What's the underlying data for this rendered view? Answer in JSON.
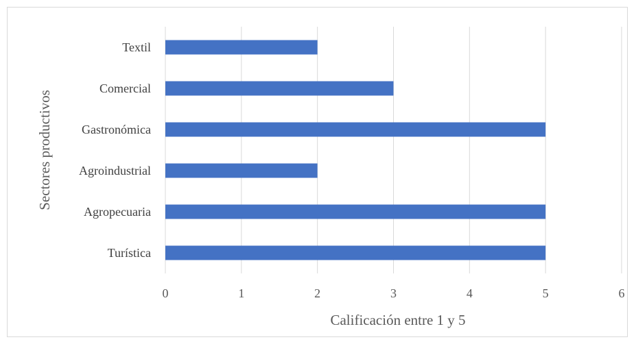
{
  "chart_data": {
    "type": "bar",
    "orientation": "horizontal",
    "categories": [
      "Textil",
      "Comercial",
      "Gastronómica",
      "Agroindustrial",
      "Agropecuaria",
      "Turística"
    ],
    "values": [
      2,
      3,
      5,
      2,
      5,
      5
    ],
    "xlabel": "Calificación entre 1 y 5",
    "ylabel": "Sectores productivos",
    "xlim": [
      0,
      6
    ],
    "x_ticks": [
      "0",
      "1",
      "2",
      "3",
      "4",
      "5",
      "6"
    ],
    "grid": "vertical",
    "legend": "none",
    "bar_color": "#4472c4",
    "grid_color": "#d9d9d9"
  }
}
